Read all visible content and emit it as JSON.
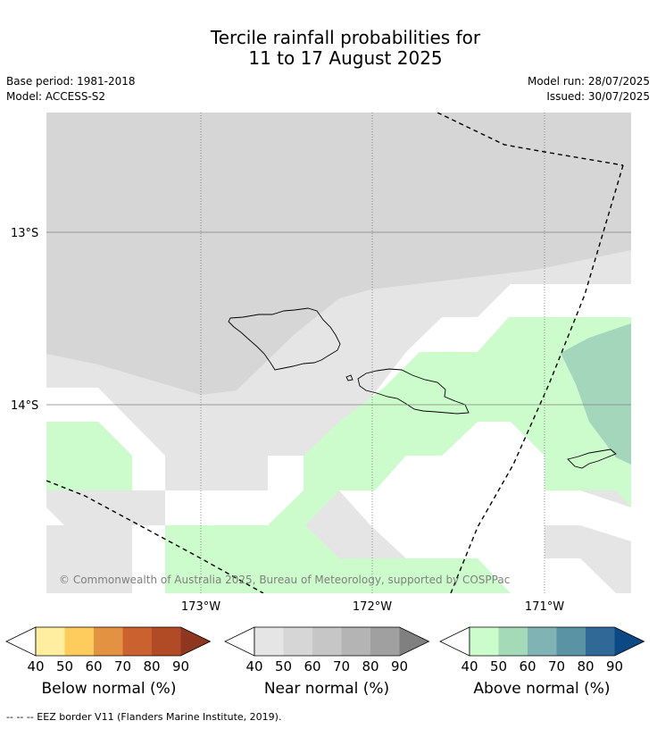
{
  "title_line1": "Tercile rainfall probabilities for",
  "title_line2": "11 to 17 August 2025",
  "base_period": "Base period: 1981-2018",
  "model": "Model: ACCESS-S2",
  "model_run": "Model run: 28/07/2025",
  "issued": "Issued: 30/07/2025",
  "map": {
    "lat_labels": [
      "13°S",
      "14°S"
    ],
    "lon_labels": [
      "173°W",
      "172°W",
      "171°W"
    ],
    "credit": "© Commonwealth of Australia 2025, Bureau of Meteorology, supported by COSPPac"
  },
  "colorbars": [
    {
      "name": "Below normal (%)",
      "ticks": [
        "40",
        "50",
        "60",
        "70",
        "80",
        "90"
      ],
      "colors": [
        "#ffeda0",
        "#fecc5c",
        "#e39242",
        "#cc6130",
        "#b04b26",
        "#8f3620"
      ]
    },
    {
      "name": "Near normal (%)",
      "ticks": [
        "40",
        "50",
        "60",
        "70",
        "80",
        "90"
      ],
      "colors": [
        "#e5e5e5",
        "#d6d6d6",
        "#c6c6c6",
        "#b4b4b4",
        "#a0a0a0",
        "#808080"
      ]
    },
    {
      "name": "Above normal (%)",
      "ticks": [
        "40",
        "50",
        "60",
        "70",
        "80",
        "90"
      ],
      "colors": [
        "#ccfccc",
        "#a4dab8",
        "#80b4b4",
        "#5a94a4",
        "#306898",
        "#0c4884"
      ]
    }
  ],
  "footnote": "--  --  -- EEZ border V11 (Flanders Marine Institute, 2019).",
  "colors": {
    "near_40": "#e5e5e5",
    "near_50": "#d6d6d6",
    "above_40": "#ccfccc",
    "above_50": "#a4d6bc",
    "no_signal": "#ffffff"
  }
}
